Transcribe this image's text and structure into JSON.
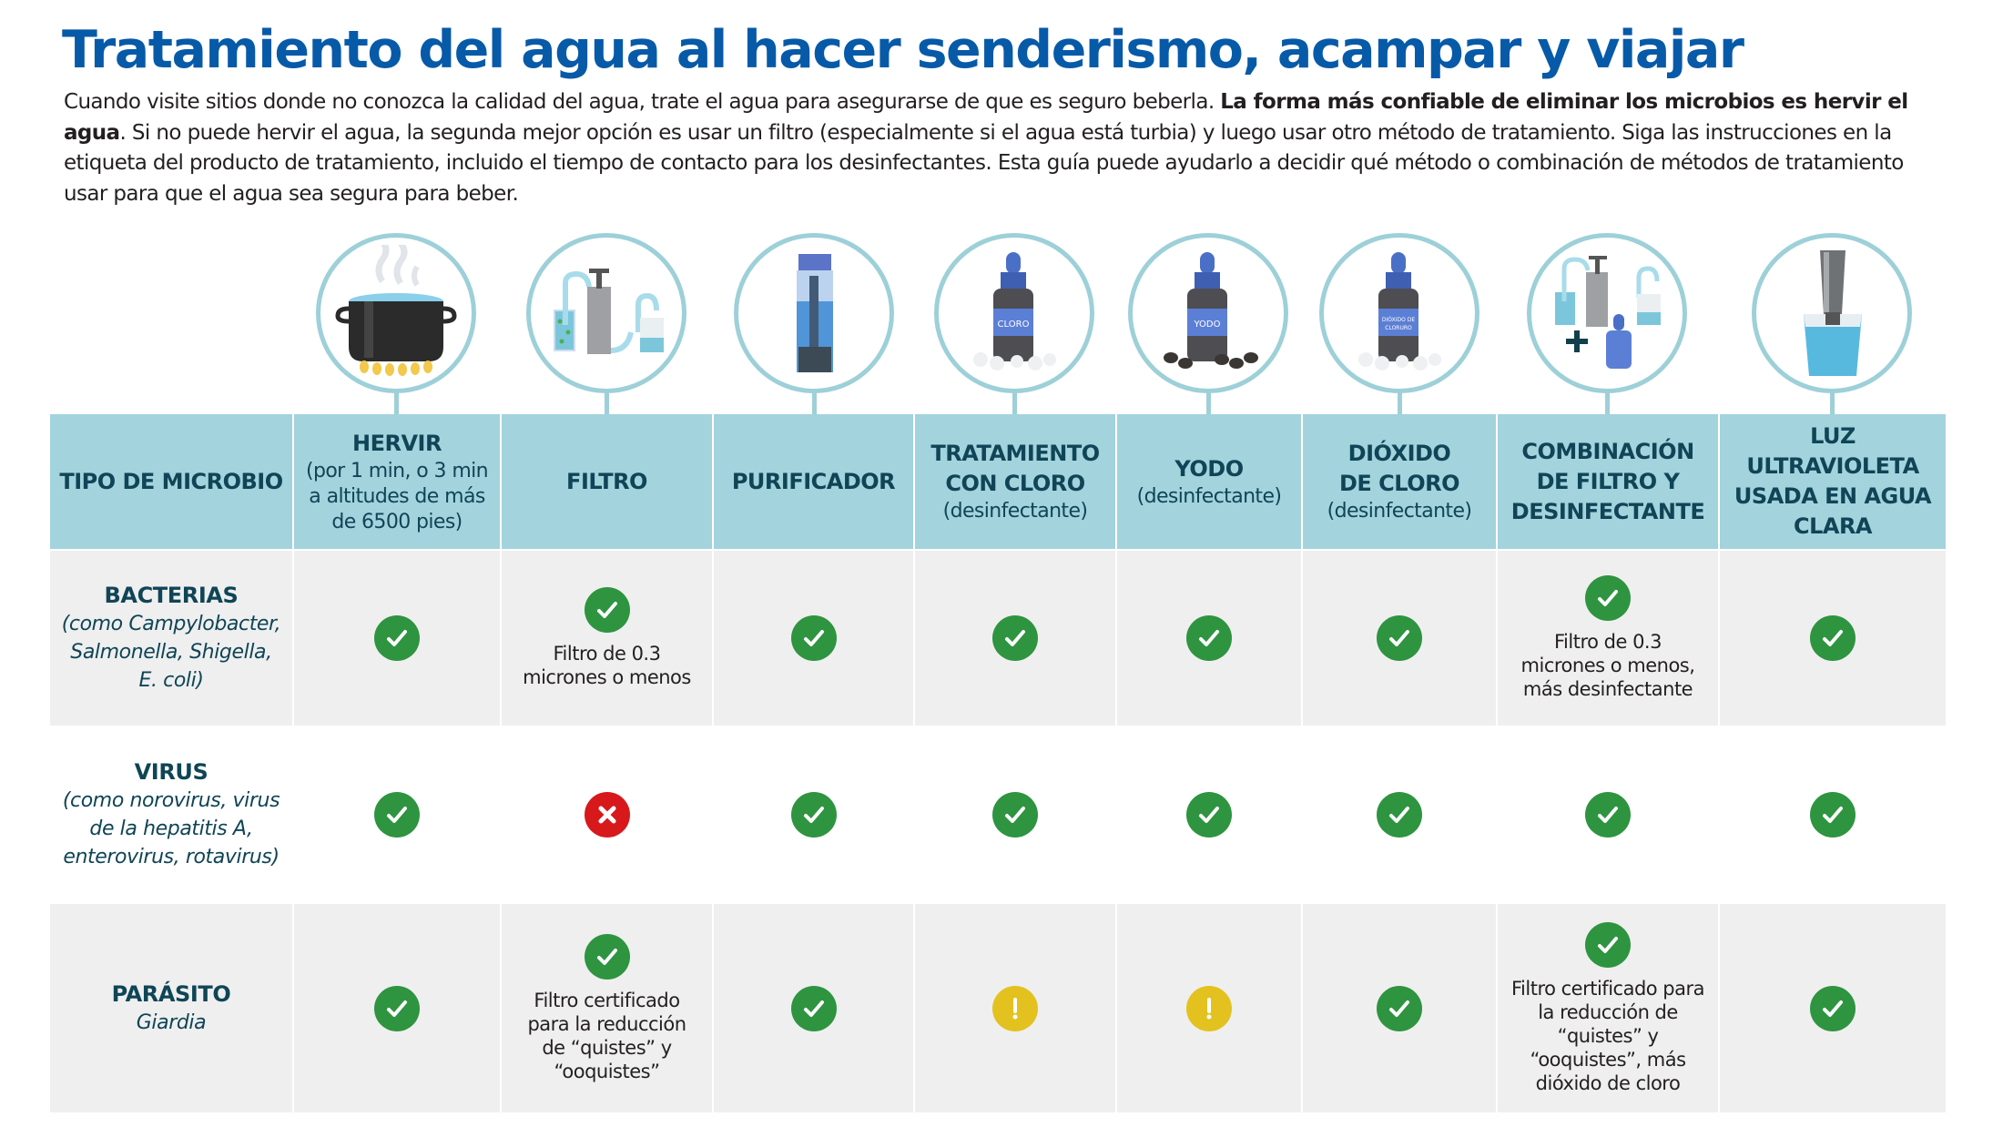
{
  "title": "Tratamiento del agua al hacer senderismo, acampar y viajar",
  "intro": {
    "part1": "Cuando visite sitios donde no conozca la calidad del agua, trate el agua para asegurarse de que es seguro beberla. ",
    "bold": "La forma más confiable de eliminar los microbios es hervir el agua",
    "part2": ". Si no puede hervir el agua, la segunda mejor opción es usar un filtro (especialmente si el agua está turbia) y luego usar otro método de tratamiento. Siga las instrucciones en la etiqueta del producto de tratamiento, incluido el tiempo de contacto para los desinfectantes. Esta guía puede ayudarlo a decidir qué método o combinación de métodos de tratamiento usar para que el agua sea segura para beber."
  },
  "colors": {
    "title_blue": "#075aa8",
    "header_bg": "#a3d3dd",
    "header_text": "#0f4556",
    "circle_border": "#9dd0d8",
    "row_gray": "#efefef",
    "check_green": "#2e9440",
    "cross_red": "#d7191c",
    "warn_yellow": "#e3c21f"
  },
  "icons": [
    {
      "name": "boiling-pot-icon",
      "label": ""
    },
    {
      "name": "pump-filter-icon",
      "label": ""
    },
    {
      "name": "purifier-bottle-icon",
      "label": ""
    },
    {
      "name": "chlorine-bottle-icon",
      "label": "CLORO"
    },
    {
      "name": "iodine-bottle-icon",
      "label": "YODO"
    },
    {
      "name": "chlorine-dioxide-bottle-icon",
      "label": "DIÓXIDO DE CLORURO"
    },
    {
      "name": "filter-plus-disinfectant-icon",
      "label": "+"
    },
    {
      "name": "uv-light-cup-icon",
      "label": ""
    }
  ],
  "table": {
    "headers": [
      {
        "main": "TIPO DE MICROBIO",
        "sub": ""
      },
      {
        "main": "HERVIR",
        "sub": "(por 1 min, o 3 min a altitudes de más de 6500 pies)"
      },
      {
        "main": "FILTRO",
        "sub": ""
      },
      {
        "main": "PURIFICADOR",
        "sub": ""
      },
      {
        "main": "TRATAMIENTO CON CLORO",
        "sub": "(desinfectante)"
      },
      {
        "main": "YODO",
        "sub": "(desinfectante)"
      },
      {
        "main": "DIÓXIDO DE CLORO",
        "sub": "(desinfectante)"
      },
      {
        "main": "COMBINACIÓN DE FILTRO Y DESINFECTANTE",
        "sub": ""
      },
      {
        "main": "LUZ ULTRAVIOLETA USADA EN AGUA CLARA",
        "sub": ""
      }
    ],
    "rows": [
      {
        "label": "BACTERIAS",
        "sublabel": "(como Campylobacter, Salmonella, Shigella, E. coli)",
        "cells": [
          {
            "status": "check",
            "note": ""
          },
          {
            "status": "check",
            "note": "Filtro de 0.3 micrones o menos"
          },
          {
            "status": "check",
            "note": ""
          },
          {
            "status": "check",
            "note": ""
          },
          {
            "status": "check",
            "note": ""
          },
          {
            "status": "check",
            "note": ""
          },
          {
            "status": "check",
            "note": "Filtro de 0.3 micrones o menos, más desinfectante"
          },
          {
            "status": "check",
            "note": ""
          }
        ]
      },
      {
        "label": "VIRUS",
        "sublabel": "(como norovirus, virus de la hepatitis A, enterovirus, rotavirus)",
        "cells": [
          {
            "status": "check",
            "note": ""
          },
          {
            "status": "cross",
            "note": ""
          },
          {
            "status": "check",
            "note": ""
          },
          {
            "status": "check",
            "note": ""
          },
          {
            "status": "check",
            "note": ""
          },
          {
            "status": "check",
            "note": ""
          },
          {
            "status": "check",
            "note": ""
          },
          {
            "status": "check",
            "note": ""
          }
        ]
      },
      {
        "label": "PARÁSITO",
        "sublabel": "Giardia",
        "cells": [
          {
            "status": "check",
            "note": ""
          },
          {
            "status": "check",
            "note": "Filtro certificado para la reducción de “quistes” y “ooquistes”"
          },
          {
            "status": "check",
            "note": ""
          },
          {
            "status": "warn",
            "note": ""
          },
          {
            "status": "warn",
            "note": ""
          },
          {
            "status": "check",
            "note": ""
          },
          {
            "status": "check",
            "note": "Filtro certificado para la reducción de “quistes” y “ooquistes”, más dióxido de cloro"
          },
          {
            "status": "check",
            "note": ""
          }
        ]
      }
    ]
  }
}
